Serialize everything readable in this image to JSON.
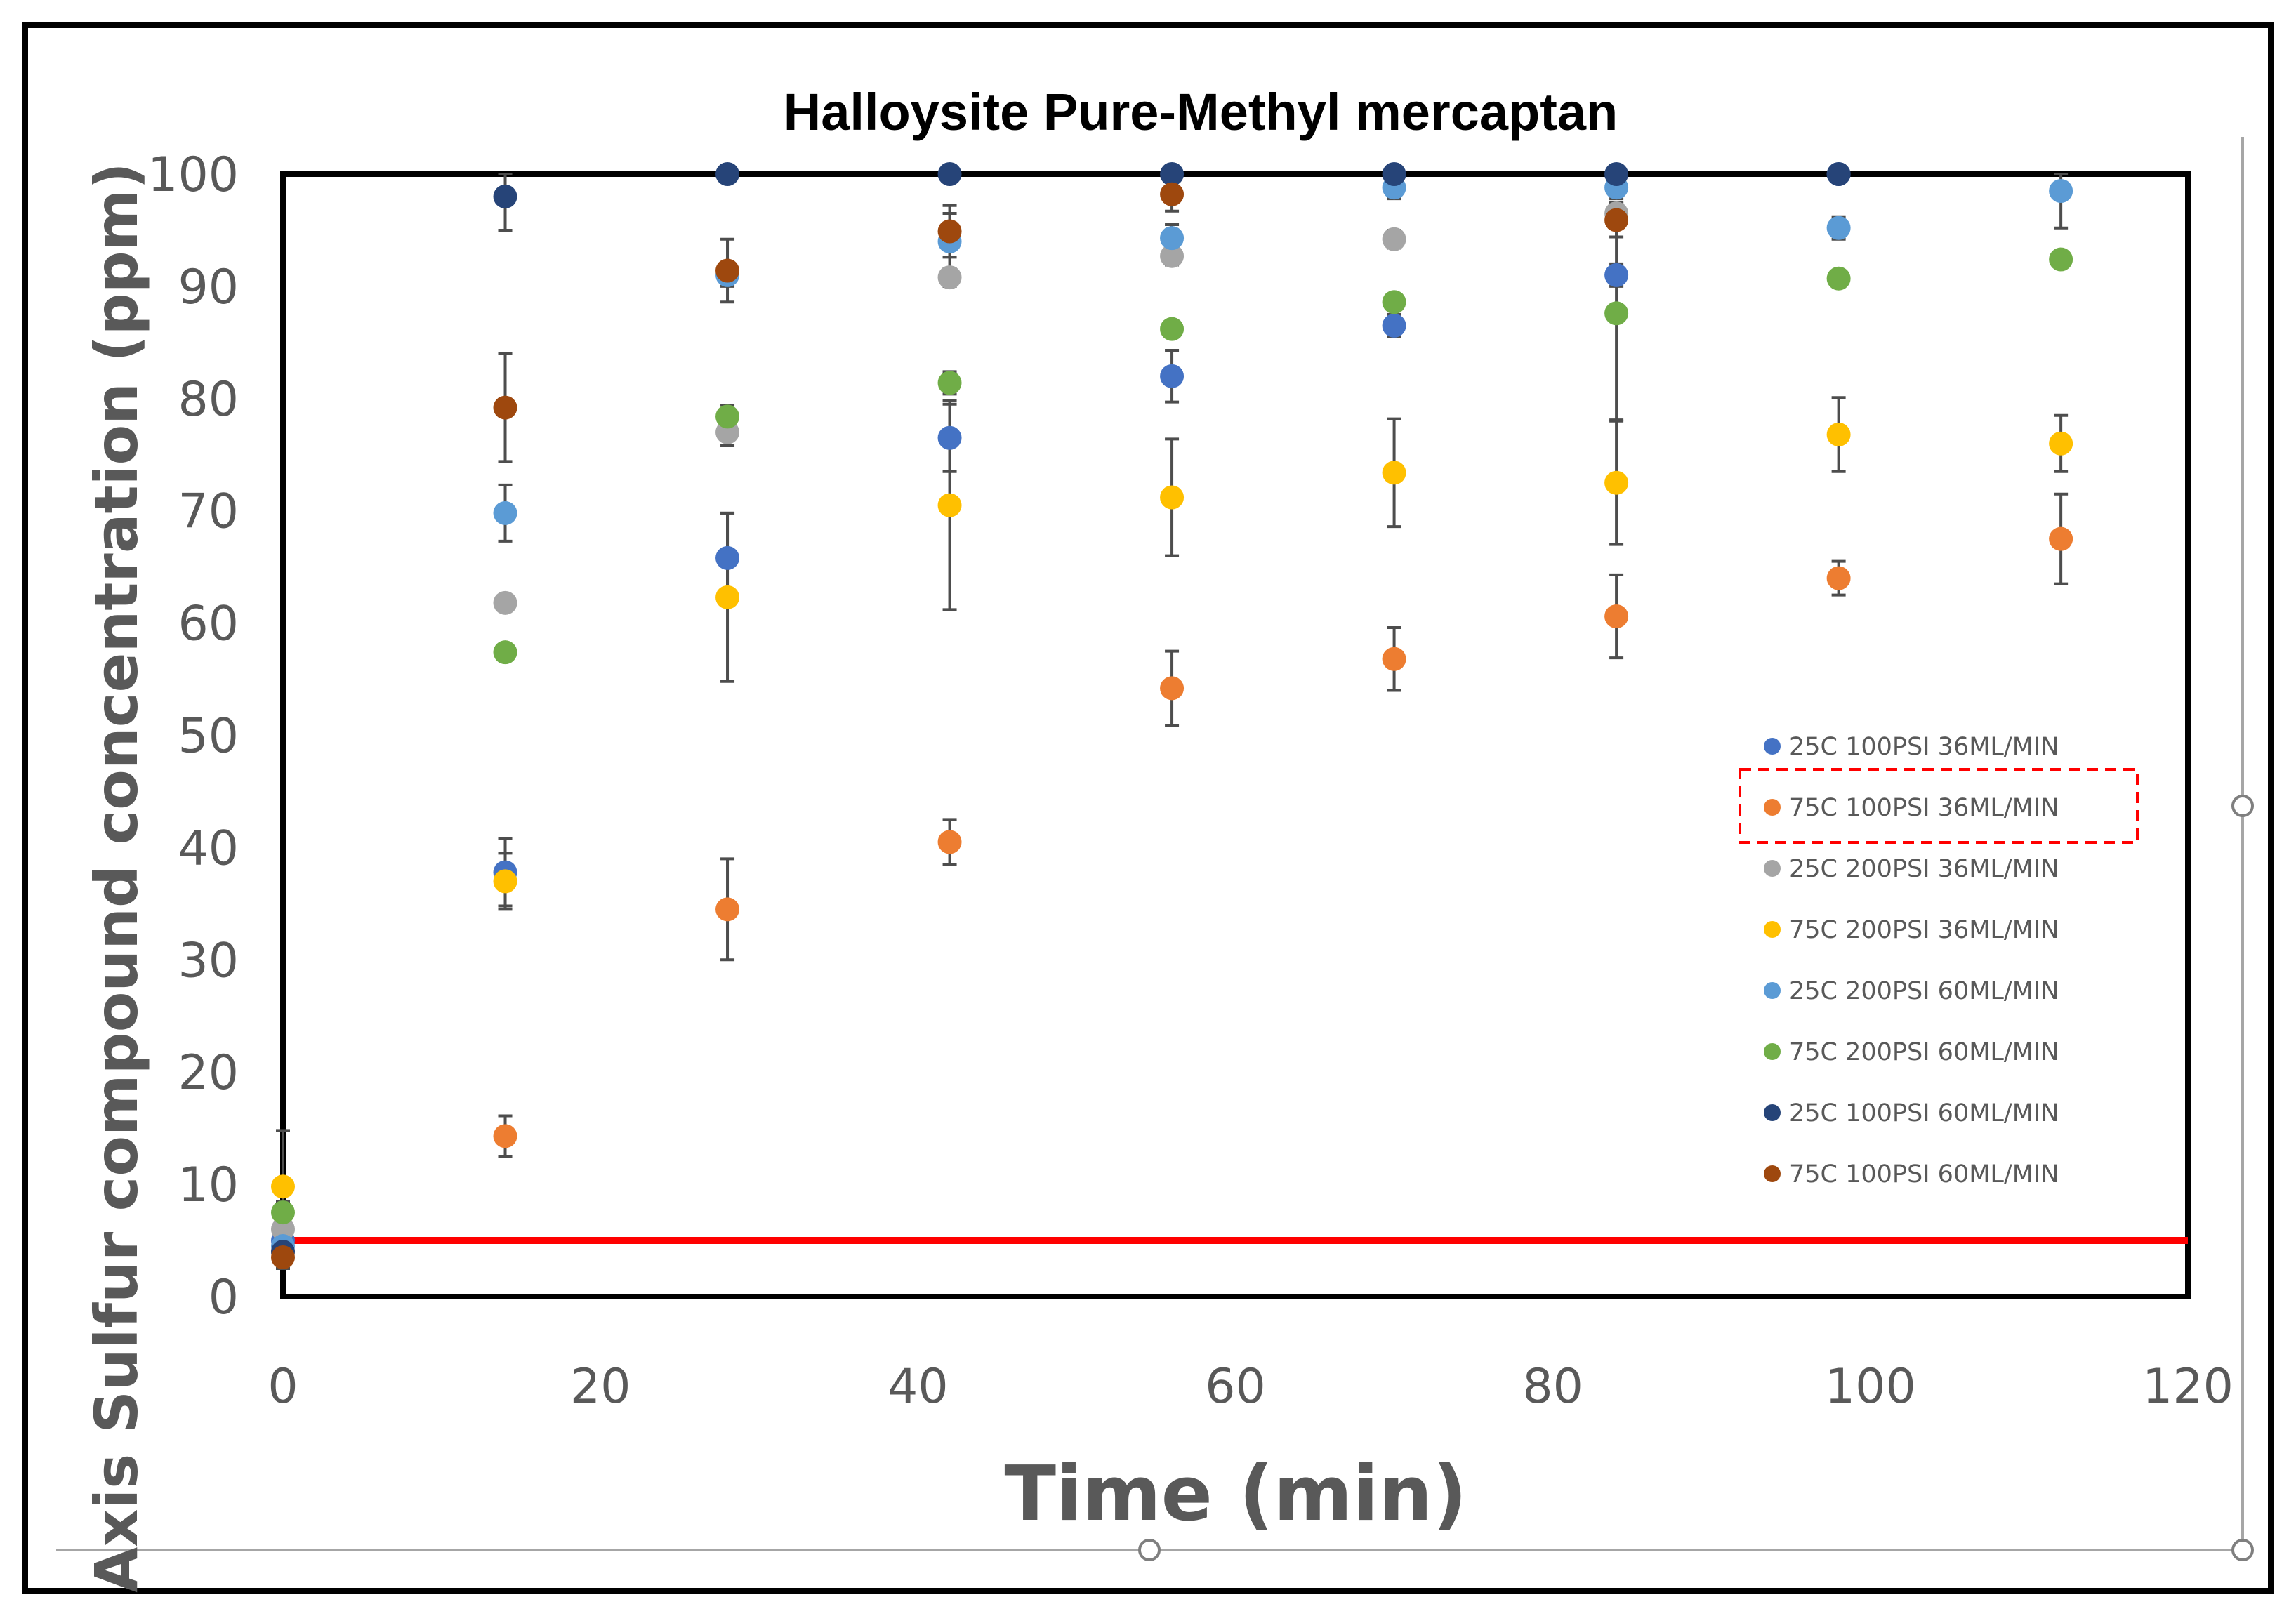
{
  "chart_data": {
    "type": "scatter",
    "title": "Halloysite Pure-Methyl mercaptan",
    "xlabel": "Time (min)",
    "ylabel": "Axis Sulfur compound concentration (ppm)",
    "xlim": [
      0,
      120
    ],
    "ylim": [
      0,
      100
    ],
    "x_ticks": [
      "0",
      "20",
      "40",
      "60",
      "80",
      "100",
      "120"
    ],
    "y_ticks": [
      "0",
      "10",
      "20",
      "30",
      "40",
      "50",
      "60",
      "70",
      "80",
      "90",
      "100"
    ],
    "grid": false,
    "legend_position": "right",
    "highlighted_legend_entry": "75C 100PSI 36ML/MIN",
    "reference_line": {
      "y": 5,
      "color": "#ff0000"
    },
    "series": [
      {
        "name": "25C 100PSI 36ML/MIN",
        "color": "#4472c4",
        "x": [
          0,
          14,
          28,
          42,
          56,
          70,
          84,
          98
        ],
        "y": [
          5,
          37.8,
          65.8,
          76.5,
          82,
          86.5,
          91,
          100
        ],
        "err": [
          2,
          3,
          4,
          3,
          2.3,
          1,
          1,
          0
        ]
      },
      {
        "name": "75C 100PSI 36ML/MIN",
        "color": "#ed7d31",
        "x": [
          0,
          14,
          28,
          42,
          56,
          70,
          84,
          98,
          112
        ],
        "y": [
          4,
          14.3,
          34.5,
          40.5,
          54.2,
          56.8,
          60.6,
          64,
          67.5
        ],
        "err": [
          1,
          1.8,
          4.5,
          2,
          3.3,
          2.8,
          3.7,
          1.5,
          4
        ]
      },
      {
        "name": "25C 200PSI 36ML/MIN",
        "color": "#a5a5a5",
        "x": [
          0,
          14,
          28,
          42,
          56,
          70,
          84
        ],
        "y": [
          6,
          61.8,
          77,
          90.8,
          92.7,
          94.2,
          96.5
        ],
        "err": [
          1,
          0.5,
          1.2,
          0.8,
          0.8,
          0.8,
          1
        ]
      },
      {
        "name": "75C 200PSI 36ML/MIN",
        "color": "#ffc000",
        "x": [
          0,
          14,
          28,
          42,
          56,
          70,
          84,
          98,
          112
        ],
        "y": [
          9.8,
          37,
          62.3,
          70.5,
          71.2,
          73.4,
          72.5,
          76.8,
          76
        ],
        "err": [
          5,
          2.5,
          7.5,
          9.3,
          5.2,
          4.8,
          5.5,
          3.3,
          2.5
        ]
      },
      {
        "name": "25C 200PSI 60ML/MIN",
        "color": "#5b9bd5",
        "x": [
          0,
          14,
          28,
          42,
          56,
          70,
          84,
          98,
          112
        ],
        "y": [
          4.5,
          69.8,
          91,
          94,
          94.3,
          98.8,
          98.8,
          95.2,
          98.5
        ],
        "err": [
          1,
          2.5,
          1,
          2.5,
          1.2,
          1,
          1,
          1,
          3.3
        ]
      },
      {
        "name": "75C 200PSI 60ML/MIN",
        "color": "#70ad47",
        "x": [
          0,
          14,
          28,
          42,
          56,
          70,
          84,
          98,
          112
        ],
        "y": [
          7.5,
          57.4,
          78.4,
          81.4,
          86.2,
          88.6,
          87.6,
          90.7,
          92.4
        ],
        "err": [
          1,
          0.5,
          1,
          1,
          0.6,
          0.6,
          9.5,
          0.6,
          0.6
        ]
      },
      {
        "name": "25C 100PSI 60ML/MIN",
        "color": "#264478",
        "x": [
          0,
          14,
          28,
          42,
          56,
          70,
          84,
          98
        ],
        "y": [
          4,
          98,
          100,
          100,
          100,
          100,
          100,
          100
        ],
        "err": [
          1,
          3,
          0,
          0,
          0,
          0,
          0,
          0
        ]
      },
      {
        "name": "75C 100PSI 60ML/MIN",
        "color": "#9e480e",
        "x": [
          0,
          14,
          28,
          42,
          56,
          84
        ],
        "y": [
          3.5,
          79.2,
          91.4,
          94.9,
          98.2,
          95.9
        ],
        "err": [
          1,
          4.8,
          2.8,
          2.3,
          1.5,
          1.5
        ]
      }
    ]
  }
}
